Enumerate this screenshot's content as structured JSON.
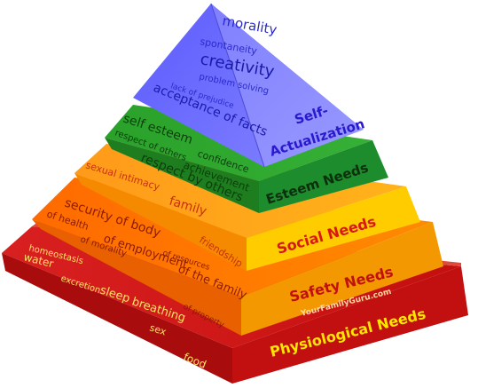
{
  "levels": {
    "physiological": {
      "title": "Physiological Needs",
      "words": [
        "homeostasis",
        "water",
        "excretion",
        "sleep",
        "breathing",
        "sex",
        "food"
      ],
      "color_left": "#cc1a1a",
      "color_right": "#b80d0d"
    },
    "safety": {
      "title": "Safety Needs",
      "words": [
        "security of body",
        "of health",
        "of employment",
        "of morality",
        "of resources",
        "of the family",
        "of property"
      ],
      "color_left": "#ff7a00",
      "color_right": "#f59a00"
    },
    "social": {
      "title": "Social Needs",
      "words": [
        "sexual intimacy",
        "family",
        "friendship"
      ],
      "color_left": "#ffa51a",
      "color_right": "#ffcc00"
    },
    "esteem": {
      "title": "Esteem Needs",
      "words": [
        "self esteem",
        "confidence",
        "respect of others",
        "achievement",
        "respect by others"
      ],
      "color_left": "#2e9e2e",
      "color_right": "#1f8a2a"
    },
    "self_actualization": {
      "title_line1": "Self-",
      "title_line2": "Actualization",
      "words": [
        "morality",
        "spontaneity",
        "creativity",
        "problem solving",
        "lack of prejudice",
        "acceptance of facts"
      ],
      "color_left": "#6b6bff",
      "color_right": "#8a8aff"
    }
  },
  "watermark": "YourFamilyGuru.com"
}
